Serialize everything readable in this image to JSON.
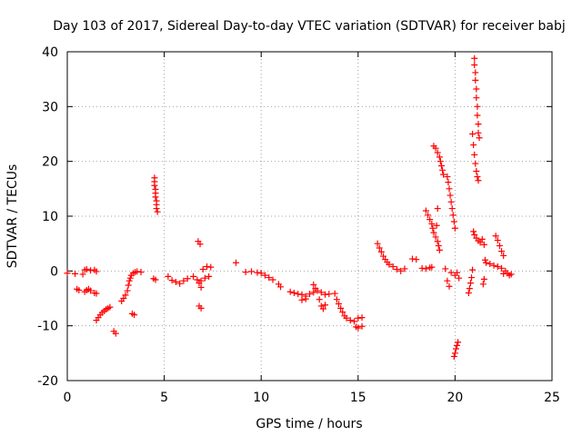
{
  "chart_data": {
    "type": "scatter",
    "title": "Day 103 of 2017, Sidereal Day-to-day VTEC variation (SDTVAR) for receiver babj",
    "xlabel": "GPS time / hours",
    "ylabel": "SDTVAR / TECUs",
    "xlim": [
      0,
      25
    ],
    "ylim": [
      -20,
      40
    ],
    "xticks": [
      0,
      5,
      10,
      15,
      20,
      25
    ],
    "yticks": [
      -20,
      -10,
      0,
      10,
      20,
      30,
      40
    ],
    "grid": true,
    "marker": "+",
    "color": "#ff0000",
    "series": [
      {
        "name": "SDTVAR",
        "segments": [
          [
            [
              0.0,
              -0.4
            ],
            [
              0.4,
              -0.5
            ],
            [
              0.8,
              -0.6
            ]
          ],
          [
            [
              0.5,
              -3.3
            ],
            [
              0.6,
              -3.5
            ]
          ],
          [
            [
              0.9,
              -3.8
            ],
            [
              1.0,
              -3.5
            ],
            [
              1.1,
              -3.3
            ],
            [
              1.2,
              -3.6
            ]
          ],
          [
            [
              0.9,
              0.2
            ],
            [
              1.0,
              0.3
            ],
            [
              1.2,
              0.1
            ],
            [
              1.4,
              0.2
            ],
            [
              1.5,
              -0.1
            ]
          ],
          [
            [
              1.4,
              -4.0
            ],
            [
              1.5,
              -4.1
            ]
          ],
          [
            [
              1.5,
              -9.0
            ],
            [
              1.6,
              -8.5
            ],
            [
              1.7,
              -8.0
            ],
            [
              1.8,
              -7.6
            ],
            [
              1.9,
              -7.3
            ],
            [
              2.0,
              -7.0
            ],
            [
              2.1,
              -6.8
            ],
            [
              2.2,
              -6.6
            ]
          ],
          [
            [
              2.4,
              -11.0
            ],
            [
              2.5,
              -11.4
            ]
          ],
          [
            [
              2.8,
              -5.5
            ],
            [
              2.9,
              -5.0
            ],
            [
              3.0,
              -4.4
            ],
            [
              3.1,
              -3.6
            ],
            [
              3.15,
              -2.6
            ],
            [
              3.2,
              -1.8
            ],
            [
              3.25,
              -1.3
            ],
            [
              3.3,
              -0.8
            ],
            [
              3.4,
              -0.4
            ],
            [
              3.5,
              -0.2
            ],
            [
              3.6,
              -0.1
            ],
            [
              3.8,
              -0.2
            ]
          ],
          [
            [
              3.35,
              -7.8
            ],
            [
              3.45,
              -8.0
            ]
          ],
          [
            [
              4.5,
              17.0
            ],
            [
              4.5,
              16.3
            ],
            [
              4.5,
              15.6
            ],
            [
              4.55,
              14.9
            ],
            [
              4.55,
              14.2
            ],
            [
              4.55,
              13.5
            ],
            [
              4.6,
              12.8
            ],
            [
              4.6,
              12.1
            ],
            [
              4.6,
              11.4
            ],
            [
              4.65,
              10.8
            ]
          ],
          [
            [
              4.45,
              -1.4
            ],
            [
              4.55,
              -1.6
            ]
          ],
          [
            [
              5.2,
              -1.0
            ],
            [
              5.4,
              -1.7
            ],
            [
              5.6,
              -2.0
            ],
            [
              5.8,
              -2.3
            ],
            [
              6.0,
              -1.8
            ],
            [
              6.2,
              -1.4
            ],
            [
              6.5,
              -1.0
            ],
            [
              6.7,
              -1.6
            ],
            [
              6.9,
              -1.8
            ],
            [
              7.1,
              -1.3
            ],
            [
              7.3,
              -1.0
            ]
          ],
          [
            [
              6.75,
              5.4
            ],
            [
              6.85,
              4.9
            ]
          ],
          [
            [
              6.8,
              -6.4
            ],
            [
              6.9,
              -6.8
            ]
          ],
          [
            [
              7.0,
              0.3
            ],
            [
              7.2,
              0.8
            ],
            [
              7.4,
              0.7
            ]
          ],
          [
            [
              6.8,
              -2.2
            ],
            [
              6.9,
              -3.0
            ]
          ],
          [
            [
              8.7,
              1.5
            ]
          ],
          [
            [
              9.2,
              -0.2
            ],
            [
              9.5,
              -0.1
            ],
            [
              9.8,
              -0.3
            ],
            [
              10.0,
              -0.4
            ],
            [
              10.2,
              -0.8
            ],
            [
              10.4,
              -1.2
            ],
            [
              10.6,
              -1.6
            ],
            [
              10.9,
              -2.4
            ],
            [
              11.0,
              -2.9
            ]
          ],
          [
            [
              11.5,
              -3.8
            ],
            [
              11.7,
              -4.0
            ],
            [
              11.9,
              -4.2
            ],
            [
              12.1,
              -4.3
            ],
            [
              12.3,
              -4.6
            ],
            [
              12.5,
              -4.2
            ],
            [
              12.7,
              -3.9
            ],
            [
              12.9,
              -3.6
            ],
            [
              13.1,
              -3.9
            ],
            [
              13.3,
              -4.3
            ],
            [
              13.5,
              -4.2
            ]
          ],
          [
            [
              12.1,
              -5.3
            ],
            [
              12.3,
              -5.1
            ]
          ],
          [
            [
              12.7,
              -2.5
            ],
            [
              12.8,
              -3.2
            ]
          ],
          [
            [
              13.0,
              -5.2
            ],
            [
              13.1,
              -6.4
            ],
            [
              13.2,
              -6.9
            ],
            [
              13.3,
              -6.2
            ]
          ],
          [
            [
              13.8,
              -4.1
            ],
            [
              13.9,
              -5.2
            ],
            [
              14.0,
              -6.0
            ],
            [
              14.1,
              -6.8
            ],
            [
              14.2,
              -7.5
            ],
            [
              14.3,
              -8.2
            ],
            [
              14.4,
              -8.6
            ],
            [
              14.6,
              -9.0
            ],
            [
              14.8,
              -9.2
            ]
          ],
          [
            [
              14.9,
              -10.2
            ],
            [
              15.0,
              -10.4
            ],
            [
              15.2,
              -10.1
            ]
          ],
          [
            [
              15.0,
              -8.6
            ],
            [
              15.2,
              -8.5
            ]
          ],
          [
            [
              16.0,
              5.0
            ],
            [
              16.1,
              4.2
            ],
            [
              16.2,
              3.5
            ],
            [
              16.3,
              2.7
            ],
            [
              16.4,
              2.1
            ],
            [
              16.5,
              1.6
            ],
            [
              16.6,
              1.2
            ],
            [
              16.8,
              0.8
            ],
            [
              17.0,
              0.3
            ],
            [
              17.2,
              0.0
            ],
            [
              17.4,
              0.4
            ]
          ],
          [
            [
              17.8,
              2.2
            ],
            [
              18.0,
              2.1
            ]
          ],
          [
            [
              18.3,
              0.5
            ],
            [
              18.5,
              0.4
            ],
            [
              18.7,
              0.6
            ],
            [
              18.8,
              0.7
            ]
          ],
          [
            [
              18.5,
              11.0
            ],
            [
              18.6,
              10.2
            ],
            [
              18.7,
              9.4
            ],
            [
              18.8,
              8.6
            ],
            [
              18.85,
              7.8
            ],
            [
              18.9,
              7.0
            ],
            [
              19.0,
              6.2
            ],
            [
              19.1,
              5.4
            ],
            [
              19.15,
              4.6
            ],
            [
              19.2,
              3.8
            ]
          ],
          [
            [
              18.9,
              22.8
            ],
            [
              19.0,
              22.4
            ],
            [
              19.1,
              21.6
            ],
            [
              19.2,
              20.8
            ],
            [
              19.25,
              20.0
            ],
            [
              19.3,
              19.2
            ],
            [
              19.35,
              18.4
            ],
            [
              19.4,
              17.6
            ]
          ],
          [
            [
              19.1,
              11.4
            ],
            [
              19.05,
              8.3
            ]
          ],
          [
            [
              19.6,
              17.2
            ],
            [
              19.65,
              16.2
            ],
            [
              19.7,
              15.0
            ],
            [
              19.75,
              13.8
            ],
            [
              19.8,
              12.6
            ],
            [
              19.85,
              11.4
            ],
            [
              19.9,
              10.2
            ],
            [
              19.95,
              9.0
            ],
            [
              20.0,
              7.8
            ]
          ],
          [
            [
              19.6,
              -1.8
            ],
            [
              19.7,
              -2.8
            ]
          ],
          [
            [
              19.5,
              0.4
            ],
            [
              19.8,
              -0.3
            ],
            [
              20.0,
              -0.8
            ]
          ],
          [
            [
              19.95,
              -15.6
            ],
            [
              20.0,
              -15.0
            ],
            [
              20.05,
              -14.2
            ],
            [
              20.1,
              -13.6
            ],
            [
              20.15,
              -13.0
            ]
          ],
          [
            [
              20.1,
              -0.3
            ],
            [
              20.2,
              -1.3
            ]
          ],
          [
            [
              20.7,
              -4.0
            ],
            [
              20.75,
              -3.2
            ],
            [
              20.8,
              -2.2
            ],
            [
              20.85,
              -1.2
            ],
            [
              20.9,
              0.2
            ]
          ],
          [
            [
              21.0,
              38.8
            ],
            [
              21.0,
              37.6
            ],
            [
              21.05,
              36.2
            ],
            [
              21.05,
              34.8
            ],
            [
              21.1,
              33.2
            ],
            [
              21.1,
              31.6
            ],
            [
              21.15,
              30.0
            ],
            [
              21.15,
              28.4
            ],
            [
              21.2,
              26.8
            ],
            [
              21.2,
              25.2
            ],
            [
              21.25,
              24.3
            ]
          ],
          [
            [
              20.9,
              25.0
            ],
            [
              20.95,
              23.0
            ],
            [
              21.0,
              21.2
            ],
            [
              21.05,
              19.6
            ],
            [
              21.1,
              18.2
            ],
            [
              21.15,
              17.2
            ],
            [
              21.2,
              16.5
            ]
          ],
          [
            [
              20.95,
              7.2
            ],
            [
              21.0,
              6.6
            ],
            [
              21.1,
              6.0
            ],
            [
              21.2,
              5.5
            ],
            [
              21.3,
              5.2
            ]
          ],
          [
            [
              21.4,
              5.8
            ],
            [
              21.5,
              4.8
            ],
            [
              21.55,
              2.0
            ],
            [
              21.5,
              -1.5
            ],
            [
              21.45,
              -2.4
            ]
          ],
          [
            [
              21.6,
              1.5
            ],
            [
              21.8,
              1.3
            ],
            [
              22.0,
              1.0
            ],
            [
              22.2,
              0.8
            ],
            [
              22.4,
              0.5
            ]
          ],
          [
            [
              22.1,
              6.4
            ],
            [
              22.2,
              5.6
            ],
            [
              22.3,
              4.6
            ],
            [
              22.4,
              3.6
            ],
            [
              22.5,
              2.8
            ]
          ],
          [
            [
              22.5,
              -0.5
            ],
            [
              22.6,
              0.0
            ],
            [
              22.7,
              -0.4
            ],
            [
              22.8,
              -0.8
            ],
            [
              22.9,
              -0.6
            ]
          ]
        ]
      }
    ]
  }
}
